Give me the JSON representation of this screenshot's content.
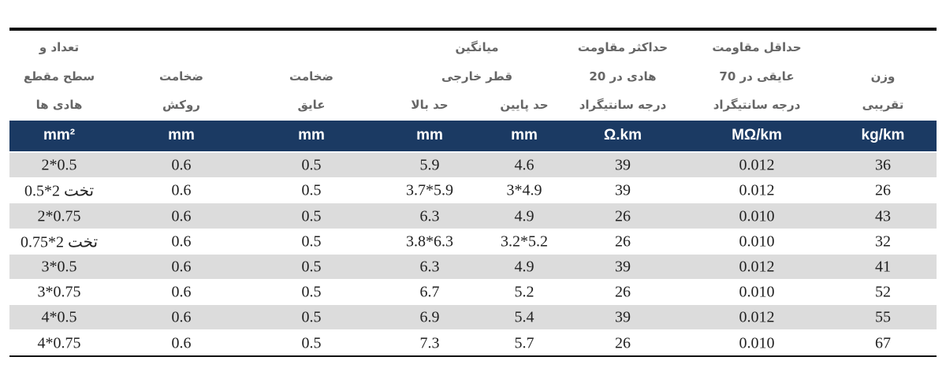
{
  "header": {
    "columns": [
      {
        "lines": [
          "تعداد و",
          "سطح مقطع",
          "هادی ها"
        ]
      },
      {
        "lines": [
          "ضخامت",
          "روکش"
        ]
      },
      {
        "lines": [
          "ضخامت",
          "عایق"
        ]
      },
      {
        "lines": [
          "حد بالا"
        ]
      },
      {
        "lines": [
          "حد پایین"
        ]
      },
      {
        "lines": [
          "حداکثر  مقاومت",
          "هادی در 20",
          "درجه سانتیگراد"
        ]
      },
      {
        "lines": [
          "حداقل مقاومت",
          "عایقی در 70",
          "درجه سانتیگراد"
        ]
      },
      {
        "lines": [
          "وزن",
          "تقریبی"
        ]
      }
    ],
    "group": {
      "lines": [
        "میانگین",
        "قطر خارجی"
      ]
    }
  },
  "units": [
    "mm²",
    "mm",
    "mm",
    "mm",
    "mm",
    "Ω.km",
    "MΩ/km",
    "kg/km"
  ],
  "rows": [
    [
      "2*0.5",
      "0.6",
      "0.5",
      "5.9",
      "4.6",
      "39",
      "0.012",
      "36"
    ],
    [
      "تخت 2*0.5",
      "0.6",
      "0.5",
      "3.7*5.9",
      "3*4.9",
      "39",
      "0.012",
      "26"
    ],
    [
      "2*0.75",
      "0.6",
      "0.5",
      "6.3",
      "4.9",
      "26",
      "0.010",
      "43"
    ],
    [
      "تخت 2*0.75",
      "0.6",
      "0.5",
      "3.8*6.3",
      "3.2*5.2",
      "26",
      "0.010",
      "32"
    ],
    [
      "3*0.5",
      "0.6",
      "0.5",
      "6.3",
      "4.9",
      "39",
      "0.012",
      "41"
    ],
    [
      "3*0.75",
      "0.6",
      "0.5",
      "6.7",
      "5.2",
      "26",
      "0.010",
      "52"
    ],
    [
      "4*0.5",
      "0.6",
      "0.5",
      "6.9",
      "5.4",
      "39",
      "0.012",
      "55"
    ],
    [
      "4*0.75",
      "0.6",
      "0.5",
      "7.3",
      "5.7",
      "26",
      "0.010",
      "67"
    ]
  ]
}
